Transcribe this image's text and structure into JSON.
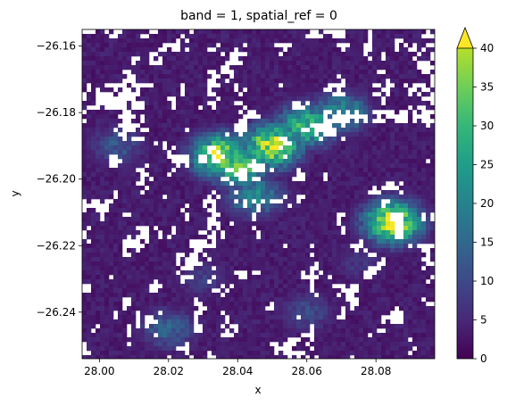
{
  "chart_data": {
    "type": "heatmap",
    "title": "band = 1, spatial_ref = 0",
    "xlabel": "x",
    "ylabel": "y",
    "xlim": [
      27.995,
      28.097
    ],
    "ylim": [
      -26.254,
      -26.155
    ],
    "x_ticks": [
      {
        "value": 28.0,
        "label": "28.00"
      },
      {
        "value": 28.02,
        "label": "28.02"
      },
      {
        "value": 28.04,
        "label": "28.04"
      },
      {
        "value": 28.06,
        "label": "28.06"
      },
      {
        "value": 28.08,
        "label": "28.08"
      }
    ],
    "y_ticks": [
      {
        "value": -26.16,
        "label": "−26.16"
      },
      {
        "value": -26.18,
        "label": "−26.18"
      },
      {
        "value": -26.2,
        "label": "−26.20"
      },
      {
        "value": -26.22,
        "label": "−26.22"
      },
      {
        "value": -26.24,
        "label": "−26.24"
      }
    ],
    "colorbar": {
      "colormap": "viridis",
      "vmin": 0,
      "vmax": 40,
      "extend": "max",
      "ticks": [
        {
          "value": 0,
          "label": "0"
        },
        {
          "value": 5,
          "label": "5"
        },
        {
          "value": 10,
          "label": "10"
        },
        {
          "value": 15,
          "label": "15"
        },
        {
          "value": 20,
          "label": "20"
        },
        {
          "value": 25,
          "label": "25"
        },
        {
          "value": 30,
          "label": "30"
        },
        {
          "value": 35,
          "label": "35"
        },
        {
          "value": 40,
          "label": "40"
        }
      ]
    },
    "hotspots": [
      {
        "x": 28.05,
        "y": -26.19,
        "value": 40
      },
      {
        "x": 28.06,
        "y": -26.184,
        "value": 30
      },
      {
        "x": 28.07,
        "y": -26.18,
        "value": 22
      },
      {
        "x": 28.04,
        "y": -26.196,
        "value": 32
      },
      {
        "x": 28.085,
        "y": -26.213,
        "value": 40
      },
      {
        "x": 28.035,
        "y": -26.193,
        "value": 38
      },
      {
        "x": 28.045,
        "y": -26.205,
        "value": 20
      },
      {
        "x": 28.005,
        "y": -26.19,
        "value": 12
      },
      {
        "x": 28.02,
        "y": -26.245,
        "value": 14
      },
      {
        "x": 28.06,
        "y": -26.24,
        "value": 10
      },
      {
        "x": 28.03,
        "y": -26.23,
        "value": 8
      },
      {
        "x": 28.075,
        "y": -26.225,
        "value": 7
      }
    ]
  }
}
